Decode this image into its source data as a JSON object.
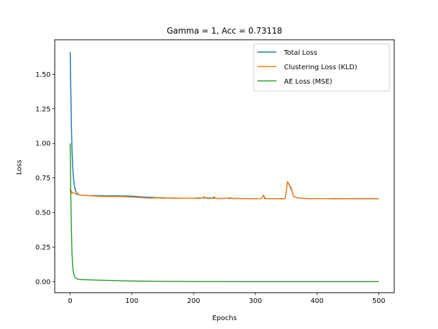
{
  "chart_data": {
    "type": "line",
    "title": "Gamma = 1, Acc = 0.73118",
    "xlabel": "Epochs",
    "ylabel": "Loss",
    "xlim": [
      -25,
      525
    ],
    "ylim": [
      -0.08,
      1.75
    ],
    "xticks": [
      0,
      100,
      200,
      300,
      400,
      500
    ],
    "yticks": [
      0.0,
      0.25,
      0.5,
      0.75,
      1.0,
      1.25,
      1.5
    ],
    "ytick_labels": [
      "0.00",
      "0.25",
      "0.50",
      "0.75",
      "1.00",
      "1.25",
      "1.50"
    ],
    "grid": false,
    "legend_position": "top-right",
    "series": [
      {
        "name": "Total Loss",
        "color": "#1f77b4",
        "x": [
          0,
          1,
          2,
          3,
          4,
          5,
          6,
          7,
          8,
          9,
          10,
          12,
          14,
          16,
          18,
          20,
          25,
          30,
          40,
          50,
          60,
          70,
          80,
          90,
          100,
          120,
          140,
          160,
          180,
          200,
          220,
          240,
          260,
          280,
          300,
          310,
          313,
          316,
          320,
          340,
          348,
          350,
          352,
          355,
          358,
          362,
          370,
          380,
          400,
          420,
          440,
          460,
          480,
          500
        ],
        "y": [
          1.66,
          1.38,
          1.12,
          0.95,
          0.84,
          0.77,
          0.72,
          0.69,
          0.67,
          0.655,
          0.645,
          0.635,
          0.63,
          0.627,
          0.625,
          0.624,
          0.623,
          0.622,
          0.623,
          0.622,
          0.621,
          0.621,
          0.62,
          0.62,
          0.618,
          0.612,
          0.608,
          0.605,
          0.603,
          0.604,
          0.606,
          0.602,
          0.603,
          0.601,
          0.6,
          0.601,
          0.625,
          0.602,
          0.6,
          0.6,
          0.6,
          0.65,
          0.72,
          0.7,
          0.67,
          0.615,
          0.605,
          0.602,
          0.601,
          0.6,
          0.6,
          0.6,
          0.6,
          0.599
        ]
      },
      {
        "name": "Clustering Loss (KLD)",
        "color": "#ff7f0e",
        "x": [
          0,
          1,
          2,
          3,
          5,
          8,
          10,
          15,
          20,
          30,
          40,
          50,
          60,
          70,
          80,
          90,
          100,
          110,
          120,
          130,
          140,
          150,
          160,
          170,
          180,
          190,
          200,
          210,
          218,
          222,
          230,
          233,
          236,
          250,
          260,
          262,
          265,
          280,
          300,
          310,
          313,
          315,
          320,
          340,
          348,
          350,
          352,
          355,
          358,
          362,
          370,
          380,
          390,
          400,
          410,
          420,
          430,
          440,
          450,
          460,
          470,
          480,
          490,
          500
        ],
        "y": [
          0.67,
          0.63,
          0.655,
          0.64,
          0.645,
          0.636,
          0.632,
          0.627,
          0.624,
          0.621,
          0.619,
          0.617,
          0.616,
          0.615,
          0.615,
          0.614,
          0.612,
          0.609,
          0.606,
          0.604,
          0.606,
          0.603,
          0.605,
          0.602,
          0.604,
          0.603,
          0.603,
          0.602,
          0.612,
          0.602,
          0.601,
          0.615,
          0.602,
          0.601,
          0.607,
          0.6,
          0.602,
          0.6,
          0.6,
          0.601,
          0.625,
          0.6,
          0.6,
          0.6,
          0.6,
          0.65,
          0.725,
          0.7,
          0.68,
          0.615,
          0.605,
          0.602,
          0.6,
          0.601,
          0.6,
          0.6,
          0.599,
          0.6,
          0.6,
          0.599,
          0.6,
          0.599,
          0.6,
          0.598
        ]
      },
      {
        "name": "AE Loss (MSE)",
        "color": "#2ca02c",
        "x": [
          0,
          1,
          2,
          3,
          4,
          5,
          6,
          8,
          10,
          12,
          15,
          20,
          30,
          50,
          80,
          100,
          150,
          200,
          300,
          400,
          500
        ],
        "y": [
          1.0,
          0.62,
          0.36,
          0.2,
          0.12,
          0.075,
          0.05,
          0.03,
          0.022,
          0.018,
          0.016,
          0.015,
          0.013,
          0.01,
          0.006,
          0.004,
          0.002,
          0.001,
          0.0008,
          0.0005,
          0.0003
        ]
      }
    ]
  }
}
